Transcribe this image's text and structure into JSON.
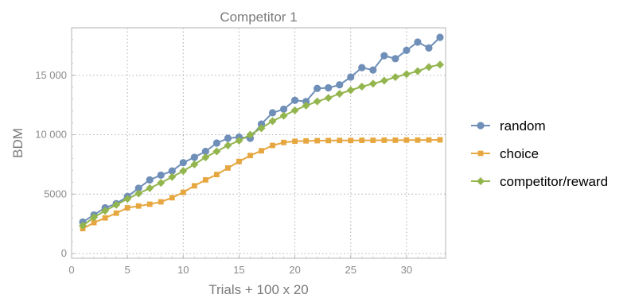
{
  "chart_data": {
    "type": "line",
    "title": "Competitor 1",
    "xlabel": "Trials + 100 x 20",
    "ylabel": "BDM",
    "xlim": [
      0,
      33.5
    ],
    "ylim": [
      -400,
      19000
    ],
    "x_ticks": [
      0,
      5,
      10,
      15,
      20,
      25,
      30
    ],
    "x_tick_labels": [
      "0",
      "5",
      "10",
      "15",
      "20",
      "25",
      "30"
    ],
    "y_ticks": [
      0,
      5000,
      10000,
      15000
    ],
    "y_tick_labels": [
      "0",
      "5000",
      "10 000",
      "15 000"
    ],
    "grid": true,
    "legend_position": "right",
    "x": [
      1,
      2,
      3,
      4,
      5,
      6,
      7,
      8,
      9,
      10,
      11,
      12,
      13,
      14,
      15,
      16,
      17,
      18,
      19,
      20,
      21,
      22,
      23,
      24,
      25,
      26,
      27,
      28,
      29,
      30,
      31,
      32,
      33
    ],
    "series": [
      {
        "name": "random",
        "color": "#6f8fb8",
        "marker": "circle",
        "values": [
          2650,
          3250,
          3850,
          4200,
          4800,
          5500,
          6200,
          6600,
          6950,
          7650,
          8100,
          8600,
          9300,
          9700,
          9800,
          9700,
          10900,
          11850,
          12150,
          12900,
          12800,
          13900,
          13950,
          14200,
          14850,
          15650,
          15450,
          16650,
          16400,
          17100,
          17800,
          17300,
          18200
        ]
      },
      {
        "name": "choice",
        "color": "#e6a740",
        "marker": "square",
        "values": [
          2100,
          2600,
          3000,
          3400,
          3850,
          4000,
          4150,
          4350,
          4700,
          5150,
          5700,
          6200,
          6650,
          7200,
          7750,
          8250,
          8650,
          9100,
          9350,
          9450,
          9480,
          9500,
          9510,
          9520,
          9520,
          9530,
          9530,
          9540,
          9540,
          9550,
          9550,
          9560,
          9570
        ]
      },
      {
        "name": "competitor/reward",
        "color": "#93b54e",
        "marker": "diamond",
        "values": [
          2350,
          3050,
          3600,
          4100,
          4600,
          5050,
          5500,
          5950,
          6450,
          6950,
          7500,
          8100,
          8600,
          9100,
          9500,
          10000,
          10550,
          11150,
          11600,
          12050,
          12450,
          12800,
          13100,
          13450,
          13750,
          14050,
          14300,
          14550,
          14850,
          15100,
          15350,
          15700,
          15900
        ]
      }
    ]
  }
}
